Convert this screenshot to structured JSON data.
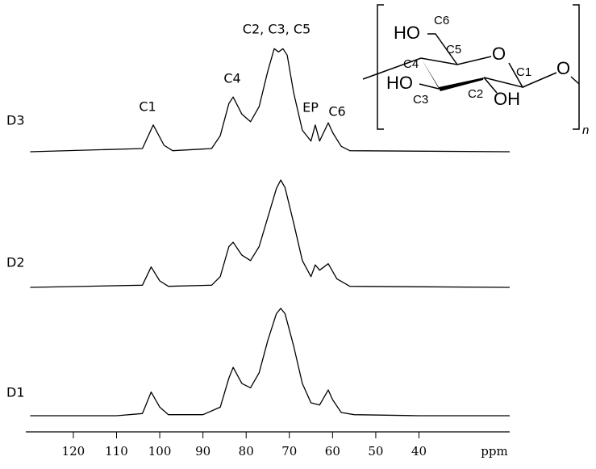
{
  "chart_data": {
    "type": "line",
    "x_label": "ppm",
    "xlim": [
      131,
      19
    ],
    "xticks": [
      120,
      110,
      100,
      90,
      80,
      70,
      60,
      50,
      40
    ],
    "ylim": [
      0,
      100
    ],
    "color": "#000000",
    "annotations": [
      "C1",
      "C4",
      "C2, C3, C5",
      "EP",
      "C6"
    ],
    "series": [
      {
        "name": "D1",
        "x": [
          130,
          110,
          104,
          102,
          100,
          98,
          90,
          86,
          84,
          83,
          81,
          79,
          77,
          75,
          73,
          72,
          71,
          69,
          67,
          65,
          63,
          61,
          60,
          58,
          55,
          40,
          19
        ],
        "values": [
          0,
          0,
          2,
          22,
          8,
          1,
          1,
          8,
          35,
          45,
          30,
          26,
          40,
          70,
          95,
          100,
          95,
          65,
          30,
          12,
          10,
          24,
          15,
          3,
          1,
          0,
          0
        ]
      },
      {
        "name": "D2",
        "x": [
          130,
          104,
          102,
          100,
          98,
          88,
          86,
          84,
          83,
          81,
          79,
          77,
          75,
          73,
          72,
          71,
          69,
          67,
          65,
          64,
          63,
          61,
          59,
          56,
          19
        ],
        "values": [
          0,
          2,
          19,
          6,
          1,
          2,
          10,
          38,
          42,
          30,
          25,
          38,
          65,
          92,
          100,
          93,
          60,
          25,
          10,
          21,
          16,
          22,
          8,
          1,
          0
        ]
      },
      {
        "name": "D3",
        "x": [
          130,
          104,
          101.5,
          99,
          97,
          88,
          86,
          84,
          83,
          81,
          79,
          77,
          75,
          73.5,
          72.5,
          71.5,
          70.5,
          69,
          67,
          65,
          64,
          63,
          61,
          60,
          58,
          56,
          19
        ],
        "values": [
          0,
          3,
          25,
          6,
          1,
          3,
          15,
          45,
          51,
          35,
          28,
          42,
          75,
          96,
          93,
          96,
          90,
          55,
          20,
          10,
          25,
          10,
          27,
          18,
          5,
          1,
          0
        ]
      }
    ]
  },
  "structure": {
    "ho_top": "HO",
    "c6": "C6",
    "c5": "C5",
    "c4": "C4",
    "o_ring": "O",
    "c1": "C1",
    "o_link": "O",
    "ho_left": "HO",
    "c3": "C3",
    "c2": "C2",
    "oh": "OH",
    "n": "n"
  }
}
